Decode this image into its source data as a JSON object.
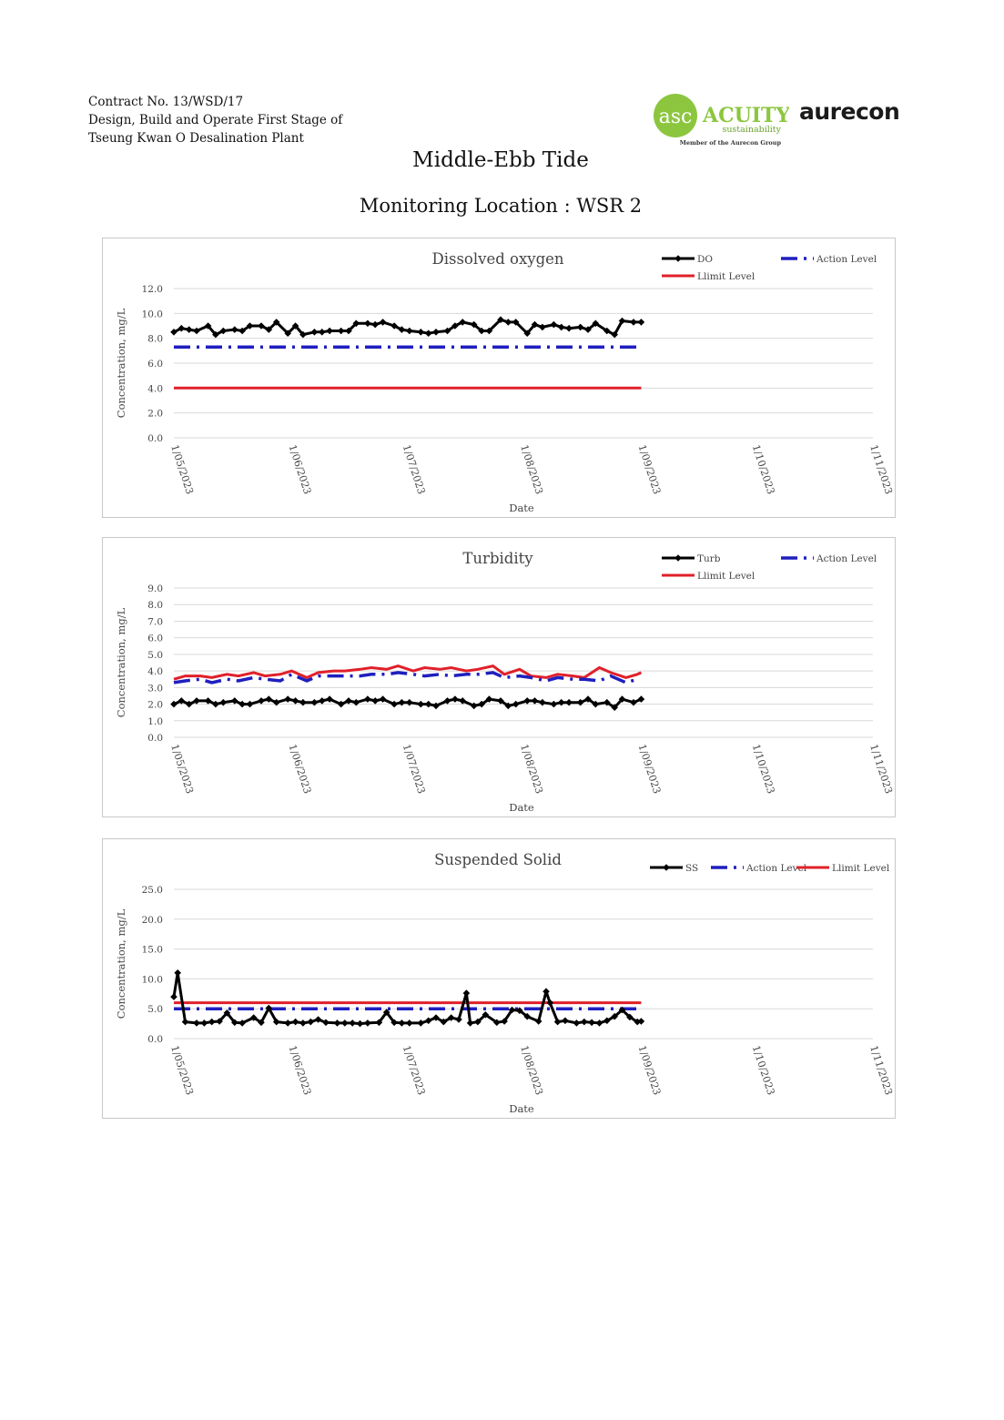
{
  "header": {
    "contract_line1": "Contract No. 13/WSD/17",
    "contract_line2": "Design, Build and Operate First Stage of",
    "contract_line3": "Tseung Kwan O Desalination Plant",
    "logo_acuity_name": "ACUITY",
    "logo_acuity_tagline": "sustainability",
    "logo_acuity_member": "Member of the Aurecon Group",
    "logo_acuity_mark": "asc",
    "logo_aurecon": "aurecon"
  },
  "page": {
    "title": "Middle-Ebb Tide",
    "subtitle": "Monitoring Location : WSR 2"
  },
  "colors": {
    "data": "#000000",
    "action": "#1f1fbf",
    "limit": "#e0202a",
    "grid": "#d9d9d9"
  },
  "chart_data": [
    {
      "type": "line",
      "title": "Dissolved oxygen",
      "xlabel": "Date",
      "ylabel": "Concentration, mg/L",
      "x_ticks": [
        "1/05/2023",
        "1/06/2023",
        "1/07/2023",
        "1/08/2023",
        "1/09/2023",
        "1/10/2023",
        "1/11/2023"
      ],
      "y_ticks": [
        "0.0",
        "2.0",
        "4.0",
        "6.0",
        "8.0",
        "10.0",
        "12.0"
      ],
      "ylim": [
        0,
        12
      ],
      "legend_layout": "two-column",
      "series": [
        {
          "name": "DO",
          "role": "data",
          "x": [
            "2023-05-01",
            "2023-05-03",
            "2023-05-05",
            "2023-05-07",
            "2023-05-10",
            "2023-05-12",
            "2023-05-14",
            "2023-05-17",
            "2023-05-19",
            "2023-05-21",
            "2023-05-24",
            "2023-05-26",
            "2023-05-28",
            "2023-05-31",
            "2023-06-02",
            "2023-06-04",
            "2023-06-07",
            "2023-06-09",
            "2023-06-11",
            "2023-06-14",
            "2023-06-16",
            "2023-06-18",
            "2023-06-21",
            "2023-06-23",
            "2023-06-25",
            "2023-06-28",
            "2023-06-30",
            "2023-07-02",
            "2023-07-05",
            "2023-07-07",
            "2023-07-09",
            "2023-07-12",
            "2023-07-14",
            "2023-07-16",
            "2023-07-19",
            "2023-07-21",
            "2023-07-23",
            "2023-07-26",
            "2023-07-28",
            "2023-07-30",
            "2023-08-02",
            "2023-08-04",
            "2023-08-06",
            "2023-08-09",
            "2023-08-11",
            "2023-08-13",
            "2023-08-16",
            "2023-08-18",
            "2023-08-20",
            "2023-08-23",
            "2023-08-25",
            "2023-08-27",
            "2023-08-30",
            "2023-09-01"
          ],
          "y": [
            8.5,
            8.8,
            8.7,
            8.6,
            9.0,
            8.3,
            8.6,
            8.7,
            8.6,
            9.0,
            9.0,
            8.7,
            9.3,
            8.4,
            9.0,
            8.3,
            8.5,
            8.5,
            8.6,
            8.6,
            8.6,
            9.2,
            9.2,
            9.1,
            9.3,
            9.0,
            8.7,
            8.6,
            8.5,
            8.4,
            8.5,
            8.6,
            9.0,
            9.3,
            9.1,
            8.6,
            8.6,
            9.5,
            9.3,
            9.3,
            8.4,
            9.1,
            8.9,
            9.1,
            8.9,
            8.8,
            8.9,
            8.7,
            9.2,
            8.6,
            8.3,
            9.4,
            9.3,
            9.3
          ]
        },
        {
          "name": "Action Level",
          "role": "action",
          "x": [
            "2023-05-01",
            "2023-08-31"
          ],
          "y": [
            7.3,
            7.3
          ]
        },
        {
          "name": "Llimit Level",
          "role": "limit",
          "x": [
            "2023-05-01",
            "2023-09-01"
          ],
          "y": [
            4.0,
            4.0
          ]
        }
      ]
    },
    {
      "type": "line",
      "title": "Turbidity",
      "xlabel": "Date",
      "ylabel": "Concentration, mg/L",
      "x_ticks": [
        "1/05/2023",
        "1/06/2023",
        "1/07/2023",
        "1/08/2023",
        "1/09/2023",
        "1/10/2023",
        "1/11/2023"
      ],
      "y_ticks": [
        "0.0",
        "1.0",
        "2.0",
        "3.0",
        "4.0",
        "5.0",
        "6.0",
        "7.0",
        "8.0",
        "9.0"
      ],
      "ylim": [
        0,
        9
      ],
      "legend_layout": "two-column",
      "series": [
        {
          "name": "Turb",
          "role": "data",
          "x": [
            "2023-05-01",
            "2023-05-03",
            "2023-05-05",
            "2023-05-07",
            "2023-05-10",
            "2023-05-12",
            "2023-05-14",
            "2023-05-17",
            "2023-05-19",
            "2023-05-21",
            "2023-05-24",
            "2023-05-26",
            "2023-05-28",
            "2023-05-31",
            "2023-06-02",
            "2023-06-04",
            "2023-06-07",
            "2023-06-09",
            "2023-06-11",
            "2023-06-14",
            "2023-06-16",
            "2023-06-18",
            "2023-06-21",
            "2023-06-23",
            "2023-06-25",
            "2023-06-28",
            "2023-06-30",
            "2023-07-02",
            "2023-07-05",
            "2023-07-07",
            "2023-07-09",
            "2023-07-12",
            "2023-07-14",
            "2023-07-16",
            "2023-07-19",
            "2023-07-21",
            "2023-07-23",
            "2023-07-26",
            "2023-07-28",
            "2023-07-30",
            "2023-08-02",
            "2023-08-04",
            "2023-08-06",
            "2023-08-09",
            "2023-08-11",
            "2023-08-13",
            "2023-08-16",
            "2023-08-18",
            "2023-08-20",
            "2023-08-23",
            "2023-08-25",
            "2023-08-27",
            "2023-08-30",
            "2023-09-01"
          ],
          "y": [
            2.0,
            2.2,
            2.0,
            2.2,
            2.2,
            2.0,
            2.1,
            2.2,
            2.0,
            2.0,
            2.2,
            2.3,
            2.1,
            2.3,
            2.2,
            2.1,
            2.1,
            2.2,
            2.3,
            2.0,
            2.2,
            2.1,
            2.3,
            2.2,
            2.3,
            2.0,
            2.1,
            2.1,
            2.0,
            2.0,
            1.9,
            2.2,
            2.3,
            2.2,
            1.9,
            2.0,
            2.3,
            2.2,
            1.9,
            2.0,
            2.2,
            2.2,
            2.1,
            2.0,
            2.1,
            2.1,
            2.1,
            2.3,
            2.0,
            2.1,
            1.8,
            2.3,
            2.1,
            2.3
          ]
        },
        {
          "name": "Action Level",
          "role": "action",
          "x": [
            "2023-05-01",
            "2023-05-04",
            "2023-05-08",
            "2023-05-11",
            "2023-05-15",
            "2023-05-18",
            "2023-05-22",
            "2023-05-25",
            "2023-05-29",
            "2023-06-01",
            "2023-06-05",
            "2023-06-08",
            "2023-06-12",
            "2023-06-15",
            "2023-06-19",
            "2023-06-22",
            "2023-06-26",
            "2023-06-29",
            "2023-07-03",
            "2023-07-06",
            "2023-07-10",
            "2023-07-13",
            "2023-07-17",
            "2023-07-20",
            "2023-07-24",
            "2023-07-27",
            "2023-07-31",
            "2023-08-03",
            "2023-08-07",
            "2023-08-10",
            "2023-08-14",
            "2023-08-17",
            "2023-08-21",
            "2023-08-24",
            "2023-08-28",
            "2023-08-31"
          ],
          "y": [
            3.3,
            3.4,
            3.5,
            3.3,
            3.5,
            3.4,
            3.6,
            3.5,
            3.4,
            3.8,
            3.4,
            3.7,
            3.7,
            3.7,
            3.7,
            3.8,
            3.8,
            3.9,
            3.8,
            3.7,
            3.8,
            3.7,
            3.8,
            3.8,
            3.9,
            3.6,
            3.7,
            3.6,
            3.4,
            3.6,
            3.5,
            3.5,
            3.4,
            3.7,
            3.3,
            3.5
          ]
        },
        {
          "name": "Llimit Level",
          "role": "limit",
          "x": [
            "2023-05-01",
            "2023-05-04",
            "2023-05-08",
            "2023-05-11",
            "2023-05-15",
            "2023-05-18",
            "2023-05-22",
            "2023-05-25",
            "2023-05-29",
            "2023-06-01",
            "2023-06-05",
            "2023-06-08",
            "2023-06-12",
            "2023-06-15",
            "2023-06-19",
            "2023-06-22",
            "2023-06-26",
            "2023-06-29",
            "2023-07-03",
            "2023-07-06",
            "2023-07-10",
            "2023-07-13",
            "2023-07-17",
            "2023-07-20",
            "2023-07-24",
            "2023-07-27",
            "2023-07-31",
            "2023-08-03",
            "2023-08-07",
            "2023-08-10",
            "2023-08-14",
            "2023-08-17",
            "2023-08-21",
            "2023-08-24",
            "2023-08-28",
            "2023-08-31",
            "2023-09-01"
          ],
          "y": [
            3.5,
            3.7,
            3.7,
            3.6,
            3.8,
            3.7,
            3.9,
            3.7,
            3.8,
            4.0,
            3.6,
            3.9,
            4.0,
            4.0,
            4.1,
            4.2,
            4.1,
            4.3,
            4.0,
            4.2,
            4.1,
            4.2,
            4.0,
            4.1,
            4.3,
            3.8,
            4.1,
            3.7,
            3.6,
            3.8,
            3.7,
            3.6,
            4.2,
            3.9,
            3.6,
            3.8,
            3.9
          ]
        }
      ]
    },
    {
      "type": "line",
      "title": "Suspended Solid",
      "xlabel": "Date",
      "ylabel": "Concentration, mg/L",
      "x_ticks": [
        "1/05/2023",
        "1/06/2023",
        "1/07/2023",
        "1/08/2023",
        "1/09/2023",
        "1/10/2023",
        "1/11/2023"
      ],
      "y_ticks": [
        "0.0",
        "5.0",
        "10.0",
        "15.0",
        "20.0",
        "25.0"
      ],
      "ylim": [
        0,
        25
      ],
      "legend_layout": "single-row",
      "series": [
        {
          "name": "SS",
          "role": "data",
          "x": [
            "2023-05-01",
            "2023-05-02",
            "2023-05-04",
            "2023-05-07",
            "2023-05-09",
            "2023-05-11",
            "2023-05-13",
            "2023-05-15",
            "2023-05-17",
            "2023-05-19",
            "2023-05-22",
            "2023-05-24",
            "2023-05-26",
            "2023-05-28",
            "2023-05-31",
            "2023-06-02",
            "2023-06-04",
            "2023-06-06",
            "2023-06-08",
            "2023-06-10",
            "2023-06-13",
            "2023-06-15",
            "2023-06-17",
            "2023-06-19",
            "2023-06-21",
            "2023-06-24",
            "2023-06-26",
            "2023-06-28",
            "2023-06-30",
            "2023-07-02",
            "2023-07-05",
            "2023-07-07",
            "2023-07-09",
            "2023-07-11",
            "2023-07-13",
            "2023-07-15",
            "2023-07-17",
            "2023-07-18",
            "2023-07-20",
            "2023-07-22",
            "2023-07-25",
            "2023-07-27",
            "2023-07-29",
            "2023-07-31",
            "2023-08-02",
            "2023-08-05",
            "2023-08-07",
            "2023-08-08",
            "2023-08-10",
            "2023-08-12",
            "2023-08-15",
            "2023-08-17",
            "2023-08-19",
            "2023-08-21",
            "2023-08-23",
            "2023-08-25",
            "2023-08-27",
            "2023-08-29",
            "2023-08-31",
            "2023-09-01"
          ],
          "y": [
            7.0,
            11.0,
            2.8,
            2.6,
            2.6,
            2.8,
            2.9,
            4.3,
            2.7,
            2.6,
            3.5,
            2.7,
            5.1,
            2.8,
            2.6,
            2.8,
            2.6,
            2.8,
            3.2,
            2.7,
            2.6,
            2.6,
            2.6,
            2.5,
            2.6,
            2.7,
            4.4,
            2.7,
            2.6,
            2.6,
            2.6,
            3.0,
            3.5,
            2.8,
            3.5,
            3.2,
            7.6,
            2.6,
            2.8,
            4.0,
            2.7,
            2.9,
            4.8,
            4.7,
            3.7,
            2.9,
            7.9,
            6.0,
            2.8,
            3.0,
            2.6,
            2.8,
            2.7,
            2.6,
            3.0,
            3.7,
            4.8,
            3.6,
            2.8,
            2.9
          ]
        },
        {
          "name": "Action Level",
          "role": "action",
          "x": [
            "2023-05-01",
            "2023-09-01"
          ],
          "y": [
            5.0,
            5.0
          ]
        },
        {
          "name": "Llimit Level",
          "role": "limit",
          "x": [
            "2023-05-01",
            "2023-09-01"
          ],
          "y": [
            6.0,
            6.0
          ]
        }
      ]
    }
  ]
}
